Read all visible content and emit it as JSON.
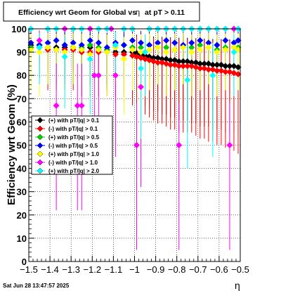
{
  "title_prefix": "Efficiency wrt Geom for Global vs",
  "title_eta": "η",
  "title_suffix": "at pT > 0.11",
  "footer_date": "Sat Jun 28 13:47:57 2025",
  "chart_data": {
    "type": "scatter",
    "title": "Efficiency wrt Geom for Global vs η at pT > 0.11",
    "xlabel": "η",
    "ylabel": "Efficiency wrt Geom (%)",
    "xlim": [
      -1.5,
      -0.5
    ],
    "ylim": [
      0,
      100
    ],
    "x_ticks": [
      -1.5,
      -1.4,
      -1.3,
      -1.2,
      -1.1,
      -1,
      -0.9,
      -0.8,
      -0.7,
      -0.6,
      -0.5
    ],
    "x_tick_labels": [
      "−1.5",
      "−1.4",
      "−1.3",
      "−1.2",
      "−1.1",
      "−1",
      "−0.9",
      "−0.8",
      "−0.7",
      "−0.6",
      "−0.5"
    ],
    "y_ticks": [
      0,
      10,
      20,
      30,
      40,
      50,
      60,
      70,
      80,
      90,
      100
    ],
    "grid": true,
    "legend_position": "middle-left",
    "series": [
      {
        "name": "(+) with pT/|q| > 0.1",
        "color": "#000000",
        "x": [
          -1.49,
          -1.45,
          -1.41,
          -1.37,
          -1.33,
          -1.29,
          -1.25,
          -1.21,
          -1.17,
          -1.13,
          -1.09,
          -1.05,
          -1.01,
          -0.99,
          -0.97,
          -0.95,
          -0.93,
          -0.91,
          -0.89,
          -0.87,
          -0.85,
          -0.83,
          -0.81,
          -0.79,
          -0.77,
          -0.75,
          -0.73,
          -0.71,
          -0.69,
          -0.67,
          -0.65,
          -0.63,
          -0.61,
          -0.59,
          -0.57,
          -0.55,
          -0.53,
          -0.51
        ],
        "y": [
          93,
          93,
          92,
          92,
          92,
          92,
          91,
          92,
          91,
          91,
          90,
          90,
          90,
          89.5,
          89,
          88.5,
          88,
          87.5,
          87.5,
          87,
          87,
          86.5,
          86.5,
          86,
          86,
          86,
          85.5,
          85.5,
          85,
          85,
          85,
          84.5,
          84.5,
          84.5,
          84,
          84,
          84,
          83.5
        ]
      },
      {
        "name": "(-) with pT/|q| > 0.1",
        "color": "#ff0000",
        "x": [
          -1.49,
          -1.45,
          -1.41,
          -1.37,
          -1.33,
          -1.29,
          -1.25,
          -1.21,
          -1.17,
          -1.13,
          -1.09,
          -1.05,
          -1.01,
          -0.99,
          -0.97,
          -0.95,
          -0.93,
          -0.91,
          -0.89,
          -0.87,
          -0.85,
          -0.83,
          -0.81,
          -0.79,
          -0.77,
          -0.75,
          -0.73,
          -0.71,
          -0.69,
          -0.67,
          -0.65,
          -0.63,
          -0.61,
          -0.59,
          -0.57,
          -0.55,
          -0.53,
          -0.51
        ],
        "y": [
          92,
          92,
          91,
          91,
          91,
          91,
          90,
          90,
          90,
          90,
          89,
          89,
          88.5,
          88,
          87.5,
          87,
          86.5,
          86,
          85.5,
          85.5,
          85,
          84.5,
          84.5,
          84,
          84,
          84,
          84,
          83.5,
          83,
          83,
          82.5,
          82.5,
          82,
          82,
          81.5,
          81.5,
          81,
          80.5
        ]
      },
      {
        "name": "(+) with pT/|q| > 0.5",
        "color": "#00cc00",
        "x": [
          -1.49,
          -1.45,
          -1.41,
          -1.37,
          -1.33,
          -1.29,
          -1.25,
          -1.21,
          -1.17,
          -1.13,
          -1.09,
          -1.05,
          -1.01,
          -0.97,
          -0.93,
          -0.89,
          -0.85,
          -0.81,
          -0.77,
          -0.73,
          -0.69,
          -0.65,
          -0.61,
          -0.57,
          -0.53,
          -0.51
        ],
        "y": [
          92,
          93,
          92,
          91,
          93,
          92,
          92,
          93,
          92,
          91,
          92,
          93,
          92,
          92,
          93,
          92,
          92,
          91,
          92,
          92,
          93,
          92,
          91,
          92,
          92,
          92
        ]
      },
      {
        "name": "(-) with pT/|q| > 0.5",
        "color": "#0000ff",
        "x": [
          -1.49,
          -1.45,
          -1.41,
          -1.37,
          -1.33,
          -1.29,
          -1.25,
          -1.21,
          -1.17,
          -1.13,
          -1.09,
          -1.05,
          -1.01,
          -0.97,
          -0.93,
          -0.89,
          -0.85,
          -0.81,
          -0.77,
          -0.73,
          -0.69,
          -0.65,
          -0.61,
          -0.57,
          -0.53,
          -0.51
        ],
        "y": [
          94,
          93,
          94,
          95,
          93,
          94,
          93,
          95,
          94,
          92,
          94,
          93,
          95,
          94,
          93,
          94,
          95,
          94,
          93,
          94,
          95,
          94,
          93,
          95,
          94,
          95
        ]
      },
      {
        "name": "(+) with pT/|q| > 1.0",
        "color": "#ffff00",
        "x": [
          -1.49,
          -1.45,
          -1.41,
          -1.37,
          -1.33,
          -1.29,
          -1.25,
          -1.21,
          -1.17,
          -1.13,
          -1.09,
          -1.05,
          -1.01,
          -0.97,
          -0.93,
          -0.89,
          -0.85,
          -0.81,
          -0.77,
          -0.73,
          -0.69,
          -0.65,
          -0.61,
          -0.57,
          -0.53,
          -0.51
        ],
        "y": [
          91,
          90,
          92,
          91,
          90,
          92,
          91,
          89,
          91,
          90,
          92,
          87,
          91,
          90,
          91,
          92,
          90,
          91,
          92,
          90,
          91,
          92,
          90,
          91,
          92,
          91
        ]
      },
      {
        "name": "(-) with pT/|q| > 1.0",
        "color": "#ff00ff",
        "x": [
          -1.49,
          -1.45,
          -1.41,
          -1.37,
          -1.33,
          -1.29,
          -1.27,
          -1.25,
          -1.21,
          -1.19,
          -1.17,
          -1.13,
          -1.11,
          -1.09,
          -1.05,
          -1.01,
          -0.99,
          -0.97,
          -0.93,
          -0.89,
          -0.85,
          -0.81,
          -0.79,
          -0.77,
          -0.73,
          -0.69,
          -0.65,
          -0.61,
          -0.57,
          -0.55,
          -0.53,
          -0.51
        ],
        "y": [
          100,
          95,
          100,
          67,
          100,
          100,
          67,
          67,
          100,
          80,
          80,
          100,
          100,
          80,
          100,
          100,
          50,
          75,
          100,
          100,
          100,
          100,
          50,
          100,
          100,
          100,
          100,
          100,
          100,
          50,
          100,
          100
        ]
      },
      {
        "name": "(+) with pT/|q| > 2.0",
        "color": "#00ffff",
        "x": [
          -1.49,
          -1.45,
          -1.41,
          -1.37,
          -1.33,
          -1.29,
          -1.25,
          -1.21,
          -1.17,
          -1.13,
          -1.09,
          -1.05,
          -1.01,
          -0.97,
          -0.95,
          -0.93,
          -0.89,
          -0.85,
          -0.81,
          -0.77,
          -0.75,
          -0.73,
          -0.69,
          -0.65,
          -0.63,
          -0.61,
          -0.57,
          -0.53,
          -0.51
        ],
        "y": [
          100,
          92,
          100,
          100,
          88,
          100,
          100,
          87,
          100,
          100,
          93,
          100,
          100,
          83,
          90,
          100,
          100,
          100,
          100,
          100,
          78,
          100,
          100,
          100,
          80,
          100,
          100,
          90,
          100
        ]
      }
    ]
  }
}
